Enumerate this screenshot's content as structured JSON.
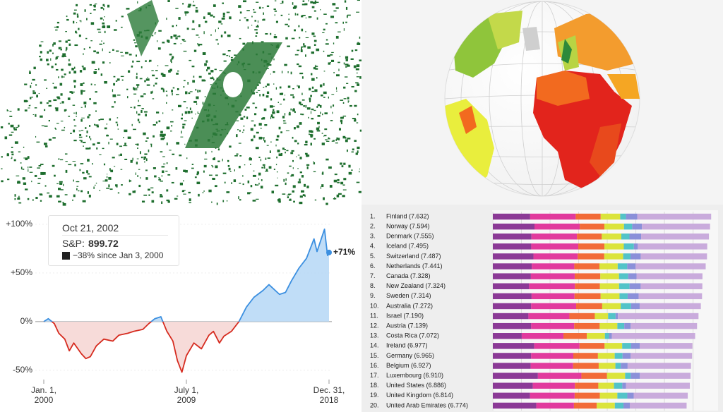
{
  "chart_data": [
    {
      "type": "line",
      "x": [
        2000,
        2000.3,
        2000.7,
        2001,
        2001.4,
        2001.7,
        2002,
        2002.5,
        2002.8,
        2003.1,
        2003.5,
        2004,
        2004.6,
        2005,
        2005.6,
        2006,
        2006.6,
        2007,
        2007.4,
        2007.8,
        2008.2,
        2008.6,
        2008.9,
        2009.2,
        2009.5,
        2010,
        2010.5,
        2011,
        2011.3,
        2011.7,
        2012,
        2012.5,
        2013,
        2013.5,
        2014,
        2014.6,
        2015,
        2015.7,
        2016.1,
        2016.5,
        2017,
        2017.5,
        2018,
        2018.2,
        2018.7,
        2018.9,
        2019
      ],
      "values": [
        0,
        3,
        -2,
        -12,
        -18,
        -30,
        -22,
        -33,
        -38,
        -36,
        -25,
        -18,
        -20,
        -14,
        -12,
        -10,
        -8,
        -2,
        3,
        5,
        -10,
        -20,
        -40,
        -52,
        -35,
        -22,
        -28,
        -14,
        -10,
        -22,
        -15,
        -10,
        0,
        15,
        25,
        32,
        38,
        28,
        30,
        42,
        55,
        65,
        85,
        72,
        95,
        68,
        71
      ],
      "end_label": "+71%",
      "color_above": "#3b8fe0",
      "color_below": "#d62b1f",
      "fill_above": "#b9d9f6",
      "fill_below": "#f6d7d5",
      "xlim": [
        2000,
        2019
      ],
      "xticks": [
        {
          "value": 2000,
          "label": "Jan. 1,\n2000"
        },
        {
          "value": 2009.5,
          "label": "July 1,\n2009"
        },
        {
          "value": 2019,
          "label": "Dec. 31,\n2018"
        }
      ],
      "ylim": [
        -90,
        113
      ],
      "yticks": [
        {
          "value": 100,
          "label": "+100%"
        },
        {
          "value": 50,
          "label": "+50%"
        },
        {
          "value": 0,
          "label": "0%"
        },
        {
          "value": -50,
          "label": "-50%"
        }
      ],
      "tooltip": {
        "date": "Oct 21, 2002",
        "label": "S&P:",
        "value": "899.72",
        "change": "−38% since Jan 3, 2000"
      }
    },
    {
      "type": "bar",
      "orientation": "horizontal",
      "stacked": true,
      "ranks": [
        "1.",
        "2.",
        "3.",
        "4.",
        "5.",
        "6.",
        "7.",
        "8.",
        "9.",
        "10.",
        "11.",
        "12.",
        "13.",
        "14.",
        "15.",
        "16.",
        "17.",
        "18.",
        "19.",
        "20."
      ],
      "categories": [
        "Finland (7.632)",
        "Norway (7.594)",
        "Denmark (7.555)",
        "Iceland (7.495)",
        "Switzerland (7.487)",
        "Netherlands (7.441)",
        "Canada (7.328)",
        "New Zealand (7.324)",
        "Sweden (7.314)",
        "Australia (7.272)",
        "Israel (7.190)",
        "Austria (7.139)",
        "Costa Rica (7.072)",
        "Ireland (6.977)",
        "Germany (6.965)",
        "Belgium (6.927)",
        "Luxembourg (6.910)",
        "United States (6.886)",
        "United Kingdom (6.814)",
        "United Arab Emirates (6.774)"
      ],
      "series": [
        {
          "color": "#8b3a96",
          "values": [
            1.305,
            1.456,
            1.351,
            1.343,
            1.42,
            1.361,
            1.33,
            1.268,
            1.355,
            1.34,
            1.244,
            1.341,
            1.01,
            1.448,
            1.34,
            1.324,
            1.576,
            1.398,
            1.301,
            1.52
          ]
        },
        {
          "color": "#e13a9d",
          "values": [
            1.592,
            1.582,
            1.59,
            1.644,
            1.549,
            1.488,
            1.532,
            1.601,
            1.501,
            1.573,
            1.433,
            1.504,
            1.459,
            1.583,
            1.474,
            1.483,
            1.52,
            1.471,
            1.559,
            1.316
          ]
        },
        {
          "color": "#f26b38",
          "values": [
            0.874,
            0.861,
            0.868,
            0.914,
            0.927,
            0.878,
            0.896,
            0.876,
            0.913,
            0.91,
            0.888,
            0.891,
            0.817,
            0.876,
            0.861,
            0.894,
            0.896,
            0.819,
            0.883,
            0.797
          ]
        },
        {
          "color": "#dbe43c",
          "values": [
            0.681,
            0.686,
            0.683,
            0.677,
            0.66,
            0.638,
            0.653,
            0.669,
            0.659,
            0.647,
            0.464,
            0.617,
            0.632,
            0.614,
            0.586,
            0.583,
            0.632,
            0.547,
            0.61,
            0.632
          ]
        },
        {
          "color": "#52c3c8",
          "values": [
            0.202,
            0.286,
            0.284,
            0.353,
            0.256,
            0.333,
            0.321,
            0.365,
            0.285,
            0.361,
            0.262,
            0.242,
            0.143,
            0.307,
            0.273,
            0.188,
            0.196,
            0.291,
            0.348,
            0.302
          ]
        },
        {
          "color": "#8b90d9",
          "values": [
            0.393,
            0.34,
            0.408,
            0.138,
            0.357,
            0.295,
            0.291,
            0.389,
            0.383,
            0.302,
            0.082,
            0.224,
            0.101,
            0.306,
            0.28,
            0.24,
            0.321,
            0.133,
            0.224,
            0.221
          ]
        },
        {
          "color": "#c9abdc",
          "values": [
            2.585,
            2.383,
            2.371,
            2.426,
            2.318,
            2.448,
            2.305,
            2.156,
            2.218,
            2.139,
            2.817,
            2.32,
            2.91,
            1.843,
            2.151,
            2.215,
            1.769,
            2.227,
            1.889,
            1.986
          ]
        }
      ],
      "xlim": [
        0,
        7.75
      ],
      "xticks": [
        0,
        1,
        2,
        3,
        4,
        5,
        6,
        7
      ],
      "grid": true
    }
  ]
}
